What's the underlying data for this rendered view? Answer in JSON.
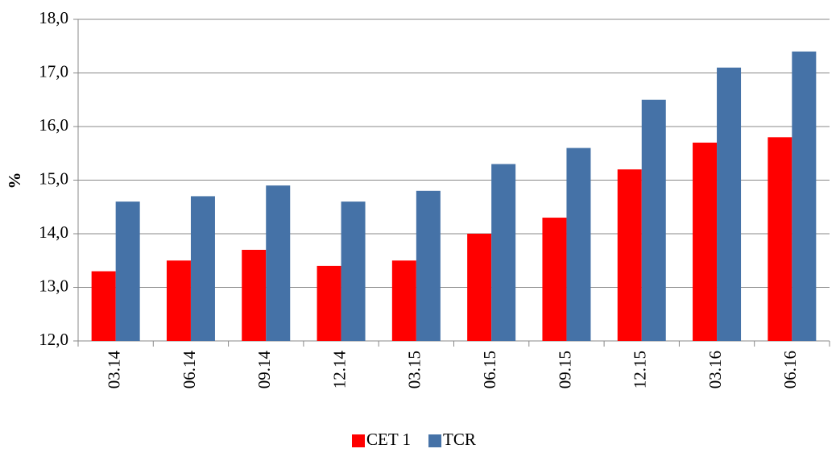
{
  "chart_data": {
    "type": "bar",
    "y_label": "%",
    "categories": [
      "03.14",
      "06.14",
      "09.14",
      "12.14",
      "03.15",
      "06.15",
      "09.15",
      "12.15",
      "03.16",
      "06.16"
    ],
    "series": [
      {
        "name": "CET 1",
        "color": "#ff0000",
        "values": [
          13.3,
          13.5,
          13.7,
          13.4,
          13.5,
          14.0,
          14.3,
          15.2,
          15.7,
          15.8
        ]
      },
      {
        "name": "TCR",
        "color": "#4572a7",
        "values": [
          14.6,
          14.7,
          14.9,
          14.6,
          14.8,
          15.3,
          15.6,
          16.5,
          17.1,
          17.4
        ]
      }
    ],
    "ylim": [
      12,
      18
    ],
    "yticks": [
      {
        "value": 12,
        "label": "12,0"
      },
      {
        "value": 13,
        "label": "13,0"
      },
      {
        "value": 14,
        "label": "14,0"
      },
      {
        "value": 15,
        "label": "15,0"
      },
      {
        "value": 16,
        "label": "16,0"
      },
      {
        "value": 17,
        "label": "17,0"
      },
      {
        "value": 18,
        "label": "18,0"
      }
    ],
    "grid": true,
    "legend": "bottom"
  }
}
